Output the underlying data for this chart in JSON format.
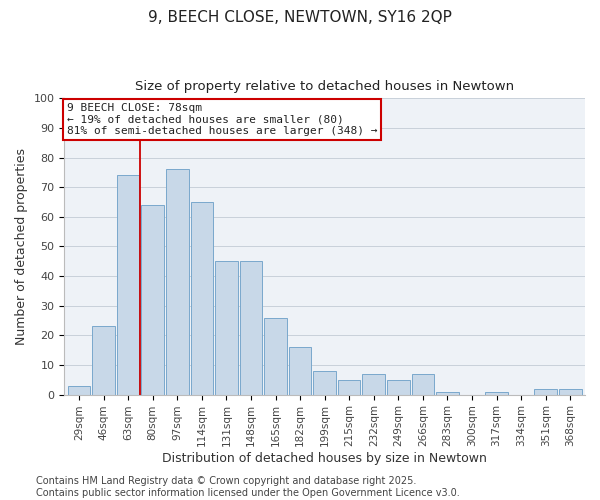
{
  "title": "9, BEECH CLOSE, NEWTOWN, SY16 2QP",
  "subtitle": "Size of property relative to detached houses in Newtown",
  "xlabel": "Distribution of detached houses by size in Newtown",
  "ylabel": "Number of detached properties",
  "bar_labels": [
    "29sqm",
    "46sqm",
    "63sqm",
    "80sqm",
    "97sqm",
    "114sqm",
    "131sqm",
    "148sqm",
    "165sqm",
    "182sqm",
    "199sqm",
    "215sqm",
    "232sqm",
    "249sqm",
    "266sqm",
    "283sqm",
    "300sqm",
    "317sqm",
    "334sqm",
    "351sqm",
    "368sqm"
  ],
  "bar_values": [
    3,
    23,
    74,
    64,
    76,
    65,
    45,
    45,
    26,
    16,
    8,
    5,
    7,
    5,
    7,
    1,
    0,
    1,
    0,
    2,
    2
  ],
  "bar_color": "#c8d8e8",
  "bar_edge_color": "#7aa8cc",
  "vline_x_index": 3,
  "vline_color": "#cc0000",
  "annotation_text": "9 BEECH CLOSE: 78sqm\n← 19% of detached houses are smaller (80)\n81% of semi-detached houses are larger (348) →",
  "annotation_box_color": "#ffffff",
  "annotation_box_edge": "#cc0000",
  "ylim": [
    0,
    100
  ],
  "yticks": [
    0,
    10,
    20,
    30,
    40,
    50,
    60,
    70,
    80,
    90,
    100
  ],
  "footnote1": "Contains HM Land Registry data © Crown copyright and database right 2025.",
  "footnote2": "Contains public sector information licensed under the Open Government Licence v3.0.",
  "bg_color": "#eef2f7",
  "title_fontsize": 11,
  "subtitle_fontsize": 9.5,
  "axis_label_fontsize": 9,
  "tick_fontsize": 7.5,
  "footnote_fontsize": 7
}
